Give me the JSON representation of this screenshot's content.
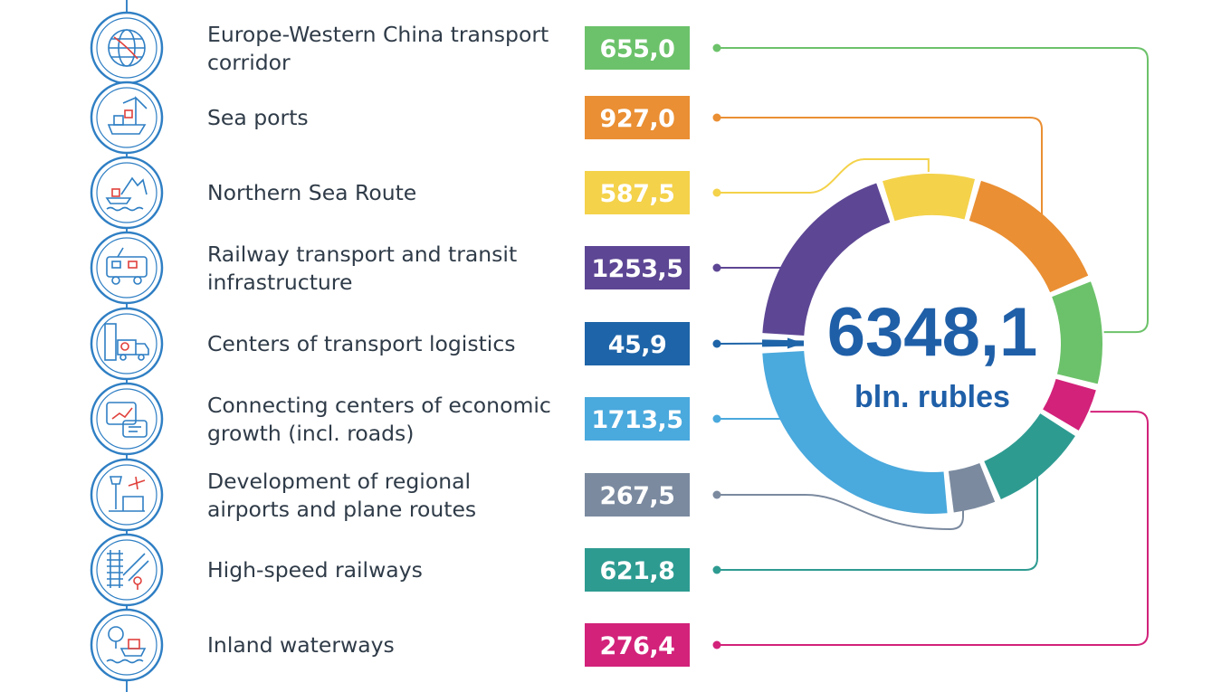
{
  "chart_data": {
    "type": "donut",
    "total": "6348,1",
    "unit": "bln. rubles",
    "categories": [
      "Europe-Western China transport corridor",
      "Sea ports",
      "Northern Sea Route",
      "Railway transport and transit infrastructure",
      "Centers of transport logistics",
      "Connecting centers of economic growth (incl. roads)",
      "Development of regional airports and plane routes",
      "High-speed railways",
      "Inland waterways"
    ],
    "series": [
      {
        "values": [
          655.0,
          927.0,
          587.5,
          1253.5,
          45.9,
          1713.5,
          267.5,
          621.8,
          276.4
        ],
        "value_labels": [
          "655,0",
          "927,0",
          "587,5",
          "1253,5",
          "45,9",
          "1713,5",
          "267,5",
          "621,8",
          "276,4"
        ]
      }
    ],
    "label_lines": [
      [
        "Europe-Western China transport",
        "corridor"
      ],
      [
        "Sea ports"
      ],
      [
        "Northern Sea Route"
      ],
      [
        "Railway transport and transit",
        "infrastructure"
      ],
      [
        "Centers of transport logistics"
      ],
      [
        "Connecting centers of economic",
        "growth (incl. roads)"
      ],
      [
        "Development of regional",
        "airports and plane routes"
      ],
      [
        "High-speed railways"
      ],
      [
        "Inland waterways"
      ]
    ],
    "icons": [
      "globe-icon",
      "port-crane-icon",
      "icebreaker-icon",
      "train-icon",
      "warehouse-truck-icon",
      "growth-chart-icon",
      "airport-icon",
      "high-speed-rail-icon",
      "river-boat-icon"
    ],
    "colors": [
      "#6cc26a",
      "#ea8f33",
      "#f4d24a",
      "#5d4694",
      "#1e64a8",
      "#4aa9dd",
      "#7b8a9f",
      "#2e9b91",
      "#d2227a"
    ],
    "ring_order": [
      2,
      1,
      0,
      8,
      7,
      6,
      5,
      4,
      3
    ]
  }
}
